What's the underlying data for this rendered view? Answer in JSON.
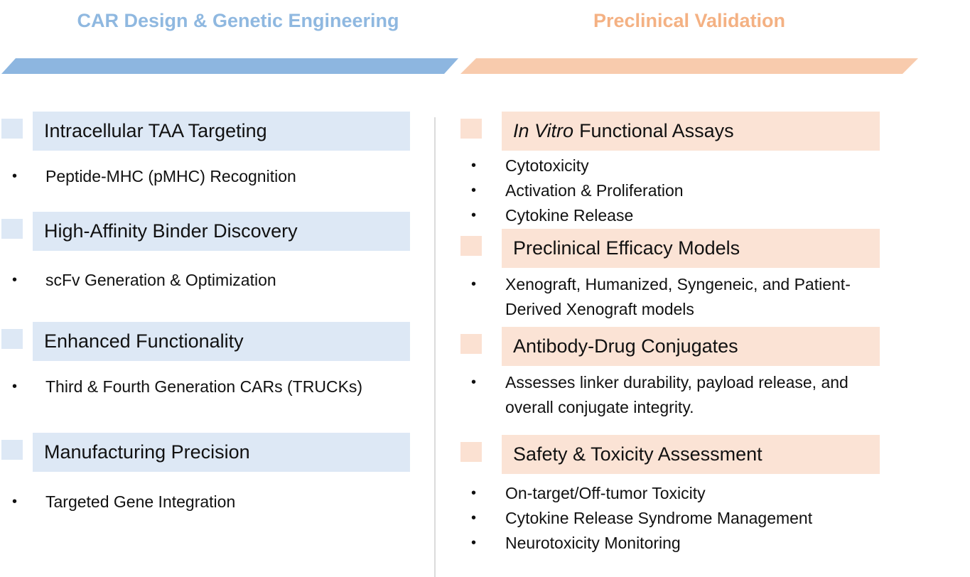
{
  "columns": [
    {
      "title": "CAR Design & Genetic Engineering",
      "sections": [
        {
          "heading": "Intracellular TAA Targeting",
          "bullets": [
            "Peptide-MHC (pMHC) Recognition"
          ]
        },
        {
          "heading": "High-Affinity Binder Discovery",
          "bullets": [
            "scFv Generation & Optimization"
          ]
        },
        {
          "heading": "Enhanced Functionality",
          "bullets": [
            "Third & Fourth Generation CARs (TRUCKs)"
          ]
        },
        {
          "heading": "Manufacturing Precision",
          "bullets": [
            "Targeted Gene Integration"
          ]
        }
      ]
    },
    {
      "title": "Preclinical Validation",
      "sections": [
        {
          "heading_italic": "In Vitro",
          "heading": "Functional Assays",
          "bullets": [
            "Cytotoxicity",
            "Activation & Proliferation",
            "Cytokine Release"
          ]
        },
        {
          "heading": "Preclinical Efficacy Models",
          "bullets": [
            "Xenograft, Humanized, Syngeneic, and Patient-Derived Xenograft models"
          ]
        },
        {
          "heading": "Antibody-Drug Conjugates",
          "bullets": [
            "Assesses linker durability, payload release, and overall conjugate integrity."
          ]
        },
        {
          "heading": "Safety & Toxicity Assessment",
          "bullets": [
            "On-target/Off-tumor Toxicity",
            "Cytokine Release Syndrome Management",
            "Neurotoxicity Monitoring"
          ]
        }
      ]
    }
  ]
}
